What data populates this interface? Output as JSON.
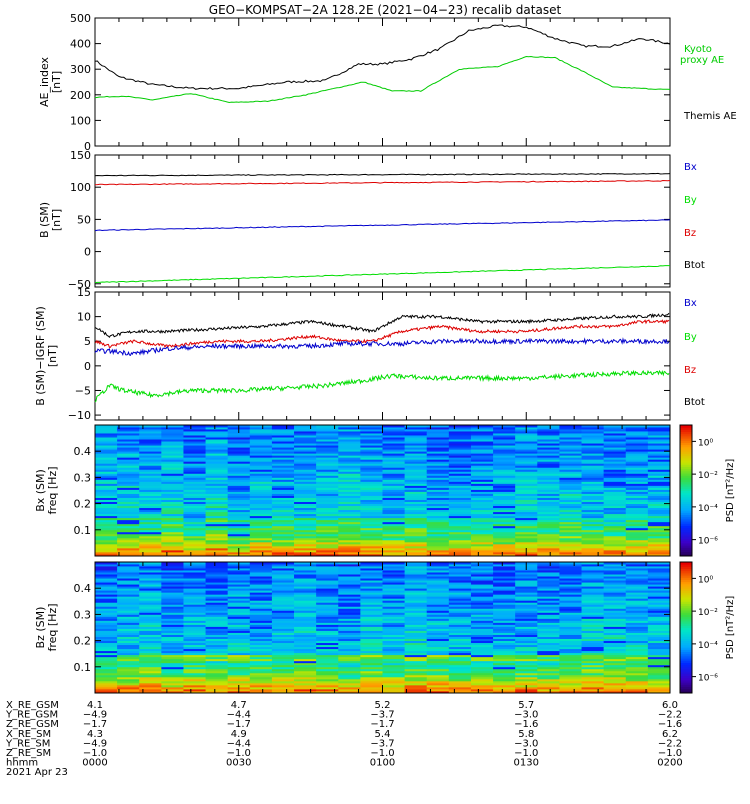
{
  "title": "GEO−KOMPSAT−2A 128.2E (2021−04−23) recalib dataset",
  "colors": {
    "black": "#000000",
    "red": "#dd0000",
    "green": "#00dd00",
    "blue": "#0000cc",
    "kyoto": "#00cc00"
  },
  "ae_panel": {
    "ylabel": [
      "AE_index",
      "[nT]"
    ],
    "ylim": [
      0,
      500
    ],
    "yticks": [
      "0",
      "100",
      "200",
      "300",
      "400",
      "500"
    ],
    "legend": [
      "Kyoto",
      "proxy AE",
      "Themis AE"
    ]
  },
  "b_panel": {
    "ylabel": [
      "B (SM)",
      "[nT]"
    ],
    "ylim": [
      -55,
      150
    ],
    "yticks": [
      "−50",
      "0",
      "50",
      "100",
      "150"
    ],
    "legend": [
      "Bx",
      "By",
      "Bz",
      "Btot"
    ]
  },
  "db_panel": {
    "ylabel": [
      "B (SM)−IGRF (SM)",
      "[nT]"
    ],
    "ylim": [
      -11,
      15
    ],
    "yticks": [
      "−10",
      "−5",
      "0",
      "5",
      "10",
      "15"
    ],
    "legend": [
      "Bx",
      "By",
      "Bz",
      "Btot"
    ]
  },
  "spec_bx": {
    "ylabel": [
      "Bx (SM)",
      "freq [Hz]"
    ],
    "yticks": [
      "0.1",
      "0.2",
      "0.3",
      "0.4"
    ],
    "colorbar_label": "PSD [nT²/Hz]",
    "colorbar_ticks": [
      "10⁰",
      "10⁻²",
      "10⁻⁴",
      "10⁻⁶"
    ]
  },
  "spec_bz": {
    "ylabel": [
      "Bz (SM)",
      "freq [Hz]"
    ],
    "yticks": [
      "0.1",
      "0.2",
      "0.3",
      "0.4"
    ],
    "colorbar_label": "PSD [nT²/Hz]",
    "colorbar_ticks": [
      "10⁰",
      "10⁻²",
      "10⁻⁴",
      "10⁻⁶"
    ]
  },
  "footer": {
    "row_labels": [
      "X_RE_GSM",
      "Y_RE_GSM",
      "Z_RE_GSM",
      "X_RE_SM",
      "Y_RE_SM",
      "Z_RE_SM",
      "hhmm",
      "2021 Apr 23"
    ],
    "columns": [
      [
        "4.1",
        "−4.9",
        "−1.7",
        "4.3",
        "−4.9",
        "−1.0",
        "0000"
      ],
      [
        "4.7",
        "−4.4",
        "−1.7",
        "4.9",
        "−4.4",
        "−1.0",
        "0030"
      ],
      [
        "5.2",
        "−3.7",
        "−1.7",
        "5.4",
        "−3.7",
        "−1.0",
        "0100"
      ],
      [
        "5.7",
        "−3.0",
        "−1.6",
        "5.8",
        "−3.0",
        "−1.0",
        "0130"
      ],
      [
        "6.0",
        "−2.2",
        "−1.6",
        "6.2",
        "−2.2",
        "−1.0",
        "0200"
      ]
    ]
  },
  "chart_data": [
    {
      "type": "line",
      "panel": "ae",
      "x": [
        0,
        10,
        20,
        30,
        40,
        50,
        60,
        70,
        80,
        90,
        100,
        110,
        120
      ],
      "xlabel": "hhmm",
      "ylabel": "AE_index [nT]",
      "ylim": [
        0,
        500
      ],
      "series": [
        {
          "name": "Themis AE",
          "color": "#000000",
          "values": [
            335,
            270,
            240,
            225,
            225,
            250,
            255,
            320,
            320,
            340,
            380,
            450,
            470,
            465,
            420,
            390,
            390,
            420,
            400
          ],
          "x": [
            0,
            5,
            12,
            20,
            30,
            40,
            48,
            55,
            60,
            66,
            72,
            78,
            84,
            90,
            96,
            102,
            108,
            114,
            120
          ]
        },
        {
          "name": "Kyoto proxy AE",
          "color": "#00cc00",
          "values": [
            190,
            195,
            180,
            205,
            170,
            175,
            200,
            250,
            215,
            215,
            300,
            310,
            350,
            345,
            290,
            230,
            225,
            220
          ],
          "x": [
            0,
            6,
            12,
            20,
            28,
            36,
            44,
            56,
            62,
            68,
            76,
            84,
            90,
            96,
            102,
            108,
            114,
            120
          ]
        }
      ]
    },
    {
      "type": "line",
      "panel": "b_sm",
      "ylabel": "B (SM) [nT]",
      "ylim": [
        -55,
        150
      ],
      "series": [
        {
          "name": "Btot",
          "color": "#000000",
          "start": 118,
          "end": 121
        },
        {
          "name": "Bz",
          "color": "#dd0000",
          "start": 104,
          "end": 110
        },
        {
          "name": "Bx",
          "color": "#0000cc",
          "start": 33,
          "end": 49
        },
        {
          "name": "By",
          "color": "#00dd00",
          "start": -48,
          "end": -22
        }
      ]
    },
    {
      "type": "line",
      "panel": "b_minus_igrf",
      "ylabel": "B (SM)−IGRF (SM) [nT]",
      "ylim": [
        -11,
        15
      ],
      "series": [
        {
          "name": "Btot",
          "color": "#000000",
          "x": [
            0,
            3,
            8,
            15,
            25,
            35,
            45,
            52,
            58,
            64,
            72,
            80,
            90,
            100,
            108,
            114,
            120
          ],
          "values": [
            8,
            6,
            7,
            7,
            7.5,
            8,
            9,
            8,
            7,
            10,
            10,
            9,
            9,
            9.5,
            10,
            10,
            10.5
          ]
        },
        {
          "name": "Bz",
          "color": "#dd0000",
          "x": [
            0,
            3,
            8,
            15,
            25,
            35,
            45,
            52,
            58,
            64,
            72,
            80,
            90,
            100,
            108,
            114,
            120
          ],
          "values": [
            5,
            4,
            5,
            4,
            5,
            5,
            6,
            5,
            5,
            7,
            8,
            7,
            7,
            8,
            8,
            9,
            9
          ]
        },
        {
          "name": "Bx",
          "color": "#0000cc",
          "x": [
            0,
            3,
            8,
            15,
            25,
            35,
            45,
            52,
            58,
            64,
            72,
            80,
            90,
            100,
            108,
            114,
            120
          ],
          "values": [
            3,
            3,
            2.5,
            3.5,
            4,
            4,
            4,
            4.5,
            4.5,
            4.5,
            5,
            5,
            5,
            5,
            5,
            5,
            5
          ]
        },
        {
          "name": "By",
          "color": "#00dd00",
          "x": [
            0,
            3,
            6,
            12,
            20,
            30,
            40,
            48,
            56,
            62,
            70,
            80,
            90,
            100,
            110,
            120
          ],
          "values": [
            -7,
            -4,
            -5,
            -6,
            -5,
            -5,
            -4.5,
            -4,
            -3,
            -2,
            -2.5,
            -2.5,
            -2.5,
            -2,
            -1.5,
            -1.5
          ]
        }
      ]
    },
    {
      "type": "heatmap",
      "panel": "bx_spectrogram",
      "ylabel": "Bx (SM) freq [Hz]",
      "ylim": [
        0,
        0.5
      ],
      "colorbar": "PSD [nT²/Hz]",
      "clim_log10": [
        -7,
        1
      ]
    },
    {
      "type": "heatmap",
      "panel": "bz_spectrogram",
      "ylabel": "Bz (SM) freq [Hz]",
      "ylim": [
        0,
        0.5
      ],
      "colorbar": "PSD [nT²/Hz]",
      "clim_log10": [
        -7,
        1
      ]
    }
  ]
}
